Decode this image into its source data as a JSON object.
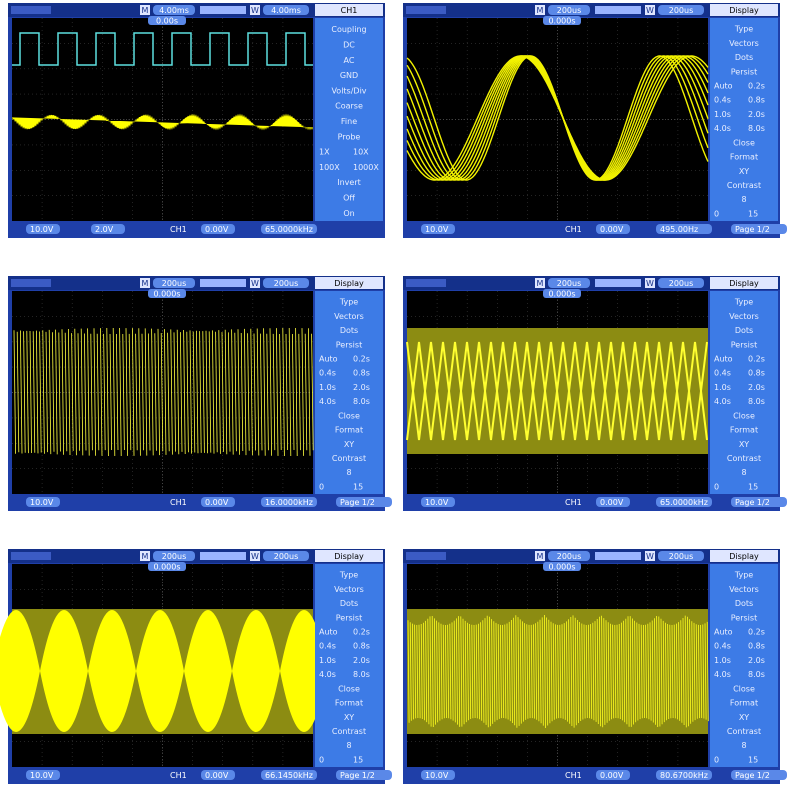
{
  "screens": [
    {
      "top": {
        "main_label": "M",
        "timebase": "4.00ms",
        "window_label": "W",
        "window": "4.00ms",
        "offset": "0.00s"
      },
      "menu": {
        "title": "CH1",
        "rows": [
          [
            "Coupling"
          ],
          [
            "DC"
          ],
          [
            "AC"
          ],
          [
            "GND"
          ],
          [
            "Volts/Div"
          ],
          [
            "Coarse"
          ],
          [
            "Fine"
          ],
          [
            "Probe"
          ],
          [
            "1X",
            "10X"
          ],
          [
            "100X",
            "1000X"
          ],
          [
            "Invert"
          ],
          [
            "Off"
          ],
          [
            "On"
          ]
        ]
      },
      "bottom": [
        "10.0V",
        "2.0V",
        "CH1",
        "0.00V",
        "65.0000kHz"
      ]
    },
    {
      "top": {
        "main_label": "M",
        "timebase": "200us",
        "window_label": "W",
        "window": "200us",
        "offset": "0.000s"
      },
      "menu": {
        "title": "Display",
        "rows": [
          [
            "Type"
          ],
          [
            "Vectors"
          ],
          [
            "Dots"
          ],
          [
            "Persist"
          ],
          [
            "Auto",
            "0.2s"
          ],
          [
            "0.4s",
            "0.8s"
          ],
          [
            "1.0s",
            "2.0s"
          ],
          [
            "4.0s",
            "8.0s"
          ],
          [
            "Close"
          ],
          [
            "Format"
          ],
          [
            "XY"
          ],
          [
            "Contrast"
          ],
          [
            "8"
          ],
          [
            "0",
            "15"
          ]
        ]
      },
      "bottom": [
        "10.0V",
        "CH1",
        "0.00V",
        "495.00Hz",
        "Page 1/2"
      ]
    },
    {
      "top": {
        "main_label": "M",
        "timebase": "200us",
        "window_label": "W",
        "window": "200us",
        "offset": "0.000s"
      },
      "menu": {
        "title": "Display",
        "rows": [
          [
            "Type"
          ],
          [
            "Vectors"
          ],
          [
            "Dots"
          ],
          [
            "Persist"
          ],
          [
            "Auto",
            "0.2s"
          ],
          [
            "0.4s",
            "0.8s"
          ],
          [
            "1.0s",
            "2.0s"
          ],
          [
            "4.0s",
            "8.0s"
          ],
          [
            "Close"
          ],
          [
            "Format"
          ],
          [
            "XY"
          ],
          [
            "Contrast"
          ],
          [
            "8"
          ],
          [
            "0",
            "15"
          ]
        ]
      },
      "bottom": [
        "10.0V",
        "CH1",
        "0.00V",
        "16.0000kHz",
        "Page 1/2"
      ]
    },
    {
      "top": {
        "main_label": "M",
        "timebase": "200us",
        "window_label": "W",
        "window": "200us",
        "offset": "0.000s"
      },
      "menu": {
        "title": "Display",
        "rows": [
          [
            "Type"
          ],
          [
            "Vectors"
          ],
          [
            "Dots"
          ],
          [
            "Persist"
          ],
          [
            "Auto",
            "0.2s"
          ],
          [
            "0.4s",
            "0.8s"
          ],
          [
            "1.0s",
            "2.0s"
          ],
          [
            "4.0s",
            "8.0s"
          ],
          [
            "Close"
          ],
          [
            "Format"
          ],
          [
            "XY"
          ],
          [
            "Contrast"
          ],
          [
            "8"
          ],
          [
            "0",
            "15"
          ]
        ]
      },
      "bottom": [
        "10.0V",
        "CH1",
        "0.00V",
        "65.0000kHz",
        "Page 1/2"
      ]
    },
    {
      "top": {
        "main_label": "M",
        "timebase": "200us",
        "window_label": "W",
        "window": "200us",
        "offset": "0.000s"
      },
      "menu": {
        "title": "Display",
        "rows": [
          [
            "Type"
          ],
          [
            "Vectors"
          ],
          [
            "Dots"
          ],
          [
            "Persist"
          ],
          [
            "Auto",
            "0.2s"
          ],
          [
            "0.4s",
            "0.8s"
          ],
          [
            "1.0s",
            "2.0s"
          ],
          [
            "4.0s",
            "8.0s"
          ],
          [
            "Close"
          ],
          [
            "Format"
          ],
          [
            "XY"
          ],
          [
            "Contrast"
          ],
          [
            "8"
          ],
          [
            "0",
            "15"
          ]
        ]
      },
      "bottom": [
        "10.0V",
        "CH1",
        "0.00V",
        "66.1450kHz",
        "Page 1/2"
      ]
    },
    {
      "top": {
        "main_label": "M",
        "timebase": "200us",
        "window_label": "W",
        "window": "200us",
        "offset": "0.000s"
      },
      "menu": {
        "title": "Display",
        "rows": [
          [
            "Type"
          ],
          [
            "Vectors"
          ],
          [
            "Dots"
          ],
          [
            "Persist"
          ],
          [
            "Auto",
            "0.2s"
          ],
          [
            "0.4s",
            "0.8s"
          ],
          [
            "1.0s",
            "2.0s"
          ],
          [
            "4.0s",
            "8.0s"
          ],
          [
            "Close"
          ],
          [
            "Format"
          ],
          [
            "XY"
          ],
          [
            "Contrast"
          ],
          [
            "8"
          ],
          [
            "0",
            "15"
          ]
        ]
      },
      "bottom": [
        "10.0V",
        "CH1",
        "0.00V",
        "80.6700kHz",
        "Page 1/2"
      ]
    }
  ]
}
